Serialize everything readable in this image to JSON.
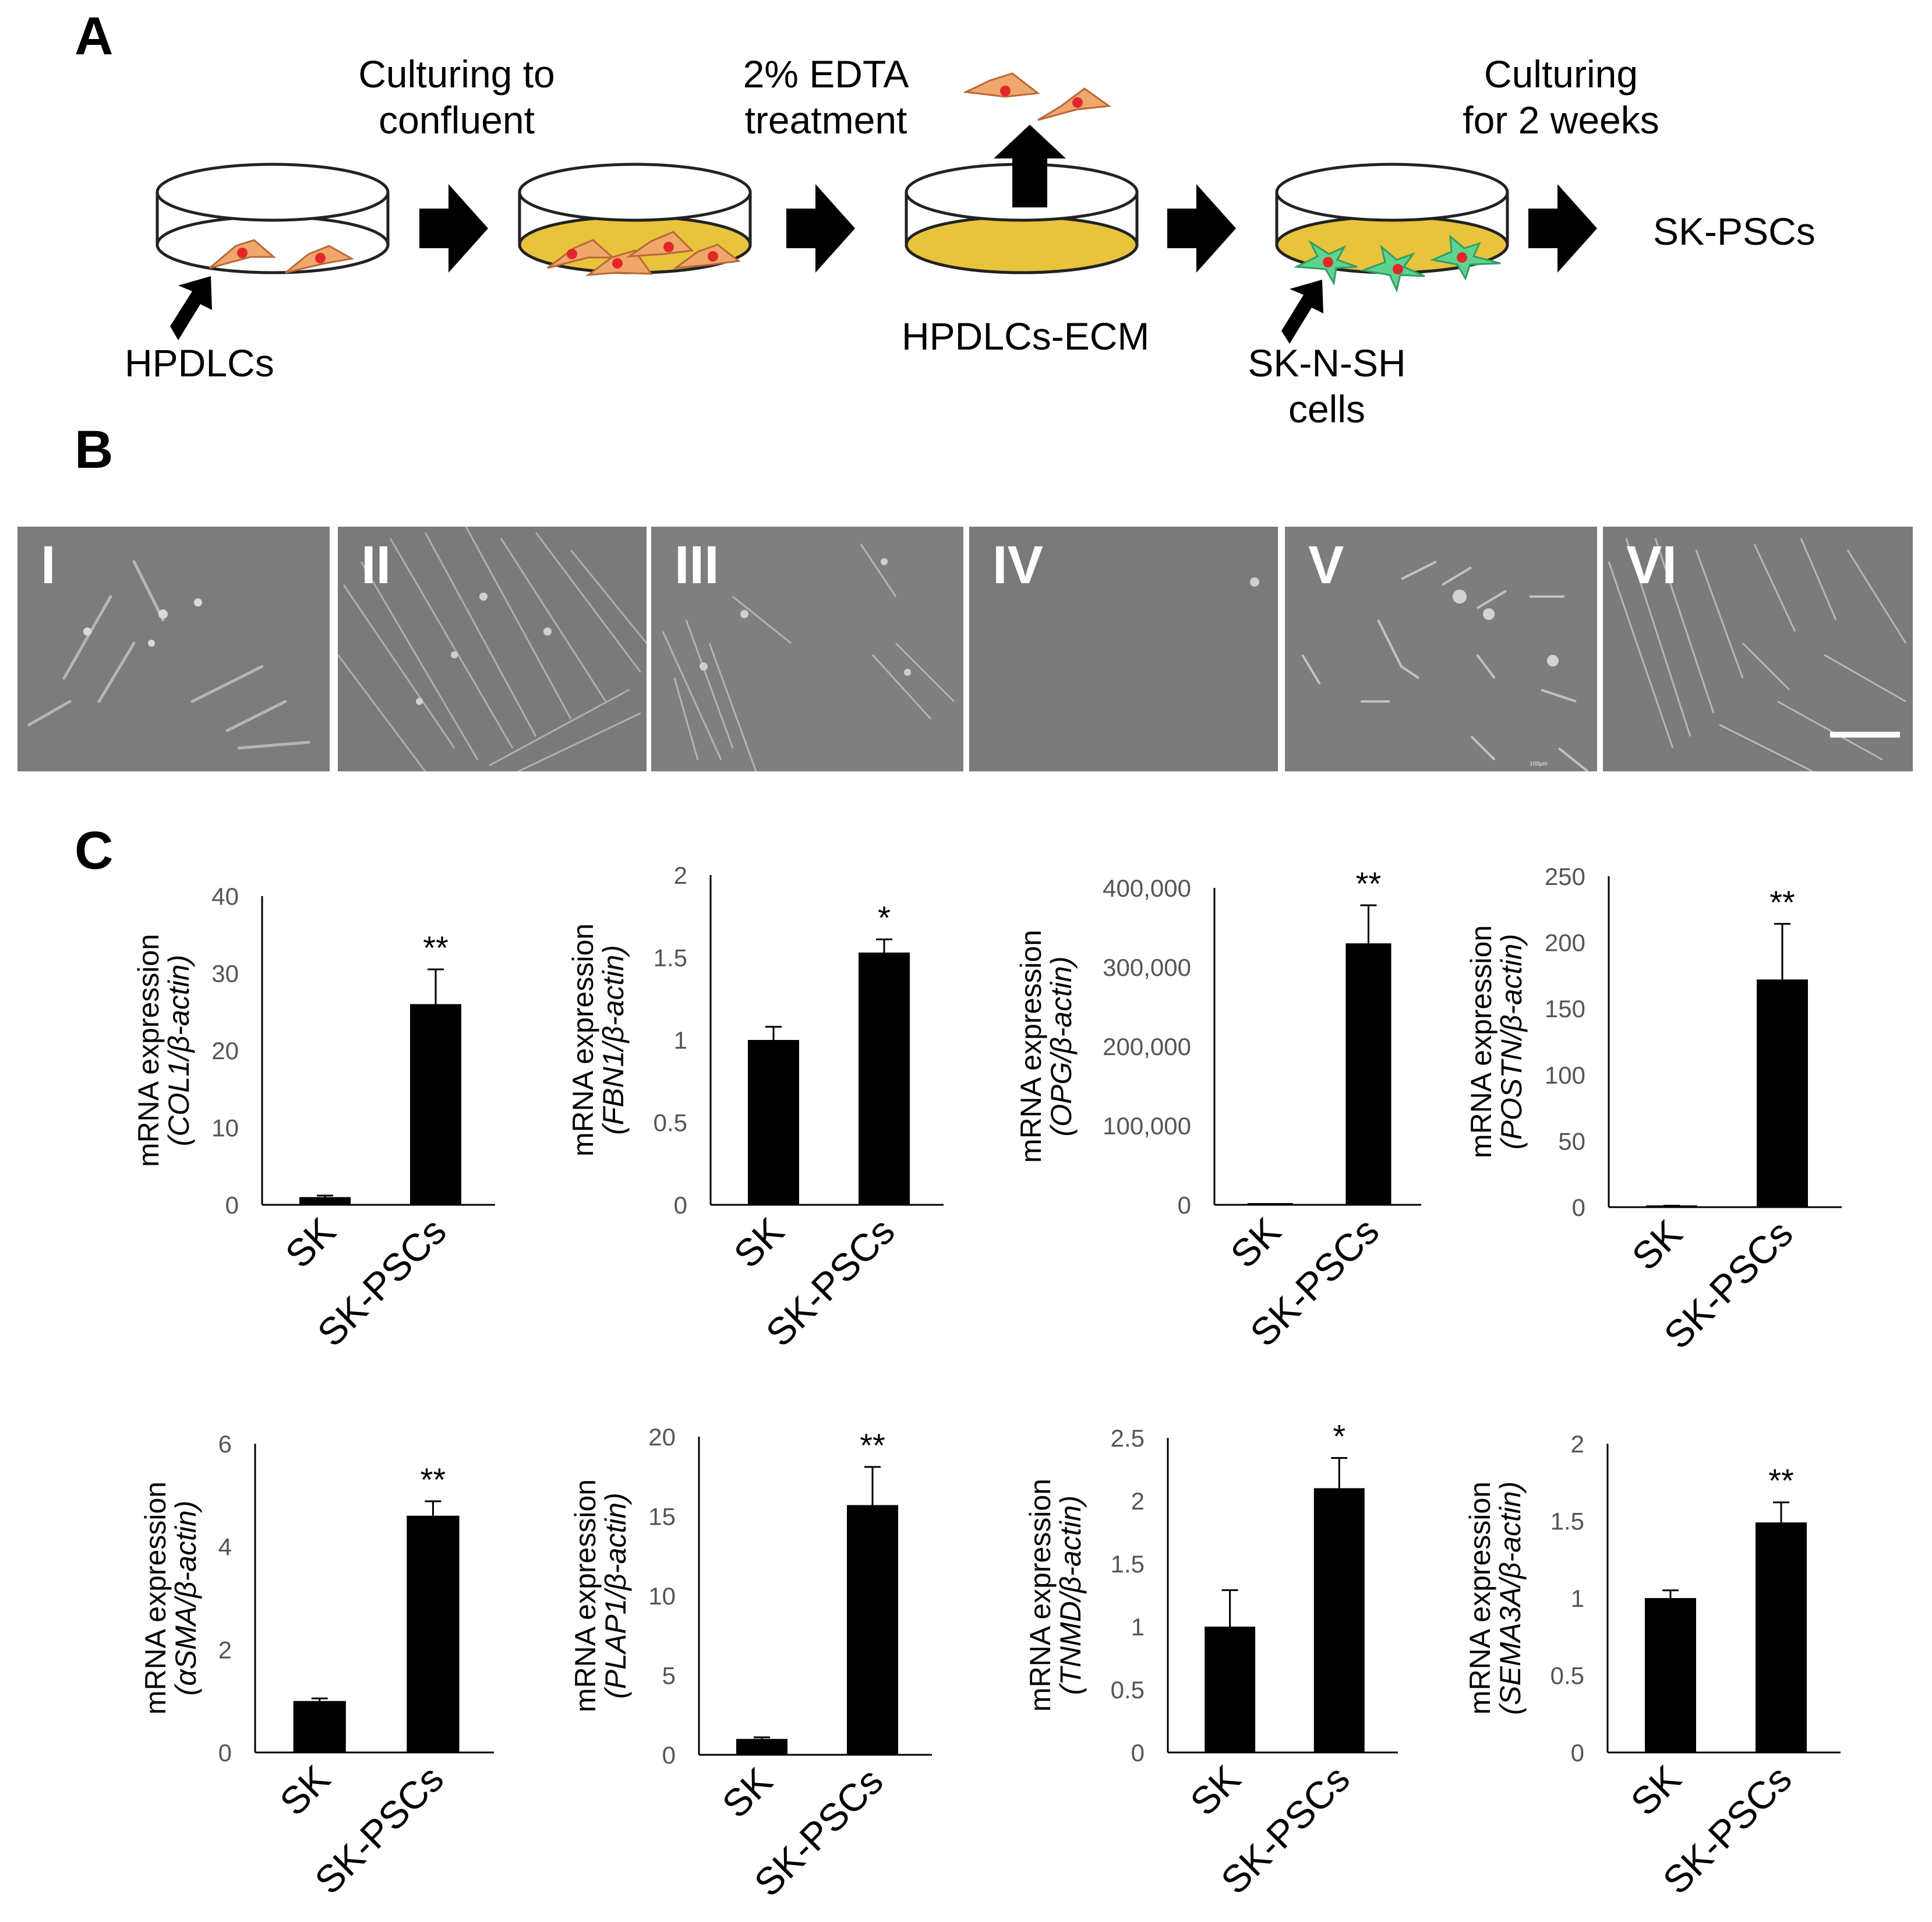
{
  "panels": {
    "a": "A",
    "b": "B",
    "c": "C"
  },
  "panel_a": {
    "step1_top": "Culturing to",
    "step1_bottom": "confluent",
    "step2_top": "2% EDTA",
    "step2_bottom": "treatment",
    "step3_top": "Culturing",
    "step3_bottom": "for 2 weeks",
    "hpdlcs": "HPDLCs",
    "ecm": "HPDLCs-ECM",
    "sk_top": "SK-N-SH",
    "sk_bottom": "cells",
    "result": "SK-PSCs",
    "colors": {
      "cell": "#f0a76a",
      "nucleus": "#e4262b",
      "ecm": "#e8c33c",
      "sk_cell": "#5fd28f"
    }
  },
  "panel_b": {
    "labels": [
      "I",
      "II",
      "III",
      "IV",
      "V",
      "VI"
    ],
    "micro_text": "100μm"
  },
  "chart_data": [
    {
      "type": "bar",
      "gene": "COL1",
      "ylabel": "mRNA expression",
      "ylabel_gene": "(COL1/β-actin)",
      "categories": [
        "SK",
        "SK-PSCs"
      ],
      "values": [
        1,
        26
      ],
      "errors": [
        0.2,
        4.5
      ],
      "sig": [
        "",
        "**"
      ],
      "ylim": [
        0,
        40
      ],
      "ticks": [
        "0",
        "10",
        "20",
        "30",
        "40"
      ]
    },
    {
      "type": "bar",
      "gene": "FBN1",
      "ylabel": "mRNA expression",
      "ylabel_gene": "(FBN1/β-actin)",
      "categories": [
        "SK",
        "SK-PSCs"
      ],
      "values": [
        1,
        1.53
      ],
      "errors": [
        0.08,
        0.08
      ],
      "sig": [
        "",
        "*"
      ],
      "ylim": [
        0,
        2
      ],
      "ticks": [
        "0",
        "0.5",
        "1",
        "1.5",
        "2"
      ]
    },
    {
      "type": "bar",
      "gene": "OPG",
      "ylabel": "mRNA expression",
      "ylabel_gene": "(OPG/β-actin)",
      "categories": [
        "SK",
        "SK-PSCs"
      ],
      "values": [
        1,
        330000
      ],
      "errors": [
        0,
        48000
      ],
      "sig": [
        "",
        "**"
      ],
      "ylim": [
        0,
        400000
      ],
      "ticks": [
        "0",
        "100,000",
        "200,000",
        "300,000",
        "400,000"
      ]
    },
    {
      "type": "bar",
      "gene": "POSTN",
      "ylabel": "mRNA expression",
      "ylabel_gene": "(POSTN/β-actin)",
      "categories": [
        "SK",
        "SK-PSCs"
      ],
      "values": [
        1,
        172
      ],
      "errors": [
        0.1,
        42
      ],
      "sig": [
        "",
        "**"
      ],
      "ylim": [
        0,
        250
      ],
      "ticks": [
        "0",
        "50",
        "100",
        "150",
        "200",
        "250"
      ]
    },
    {
      "type": "bar",
      "gene": "αSMA",
      "ylabel": "mRNA expression",
      "ylabel_gene": "(αSMA/β-actin)",
      "categories": [
        "SK",
        "SK-PSCs"
      ],
      "values": [
        1,
        4.6
      ],
      "errors": [
        0.05,
        0.28
      ],
      "sig": [
        "",
        "**"
      ],
      "ylim": [
        0,
        6
      ],
      "ticks": [
        "0",
        "2",
        "4",
        "6"
      ]
    },
    {
      "type": "bar",
      "gene": "PLAP1",
      "ylabel": "mRNA expression",
      "ylabel_gene": "(PLAP1/β-actin)",
      "categories": [
        "SK",
        "SK-PSCs"
      ],
      "values": [
        1,
        15.7
      ],
      "errors": [
        0.1,
        2.4
      ],
      "sig": [
        "",
        "**"
      ],
      "ylim": [
        0,
        20
      ],
      "ticks": [
        "0",
        "5",
        "10",
        "15",
        "20"
      ]
    },
    {
      "type": "bar",
      "gene": "TNMD",
      "ylabel": "mRNA expression",
      "ylabel_gene": "(TNMD/β-actin)",
      "categories": [
        "SK",
        "SK-PSCs"
      ],
      "values": [
        1,
        2.1
      ],
      "errors": [
        0.29,
        0.24
      ],
      "sig": [
        "",
        "*"
      ],
      "ylim": [
        0,
        2.5
      ],
      "ticks": [
        "0",
        "0.5",
        "1",
        "1.5",
        "2",
        "2.5"
      ]
    },
    {
      "type": "bar",
      "gene": "SEMA3A",
      "ylabel": "mRNA expression",
      "ylabel_gene": "(SEMA3A/β-actin)",
      "categories": [
        "SK",
        "SK-PSCs"
      ],
      "values": [
        1,
        1.49
      ],
      "errors": [
        0.05,
        0.13
      ],
      "sig": [
        "",
        "**"
      ],
      "ylim": [
        0,
        2
      ],
      "ticks": [
        "0",
        "0.5",
        "1",
        "1.5",
        "2"
      ]
    }
  ]
}
